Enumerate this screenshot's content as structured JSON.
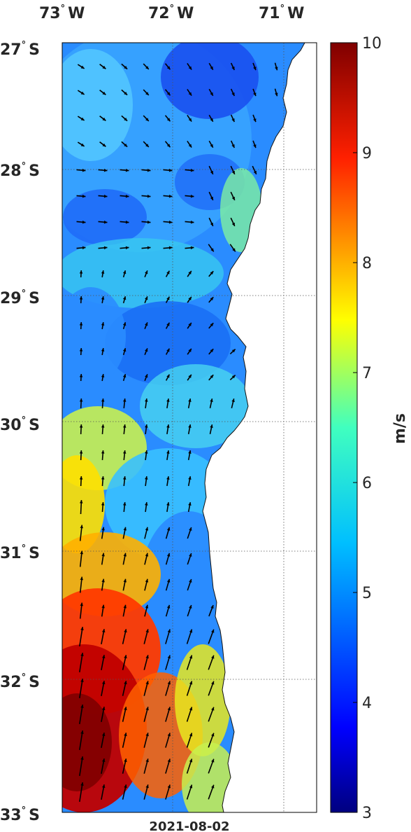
{
  "map": {
    "date": "2021-08-02",
    "lon_ticks": [
      {
        "deg": "73",
        "hemi": "W"
      },
      {
        "deg": "72",
        "hemi": "W"
      },
      {
        "deg": "71",
        "hemi": "W"
      }
    ],
    "lat_ticks": [
      {
        "deg": "27",
        "hemi": "S"
      },
      {
        "deg": "28",
        "hemi": "S"
      },
      {
        "deg": "29",
        "hemi": "S"
      },
      {
        "deg": "30",
        "hemi": "S"
      },
      {
        "deg": "31",
        "hemi": "S"
      },
      {
        "deg": "32",
        "hemi": "S"
      },
      {
        "deg": "33",
        "hemi": "S"
      }
    ],
    "lon_range": [
      -73,
      -70.7
    ],
    "lat_range": [
      -33,
      -27
    ]
  },
  "colorbar": {
    "unit": "m/s",
    "min": 3,
    "max": 10,
    "tick_labels": [
      "3",
      "4",
      "5",
      "6",
      "7",
      "8",
      "9",
      "10"
    ],
    "colormap": "jet"
  },
  "colors": {
    "land": "#ffffff",
    "frame": "#000000",
    "arrow": "#000000"
  }
}
